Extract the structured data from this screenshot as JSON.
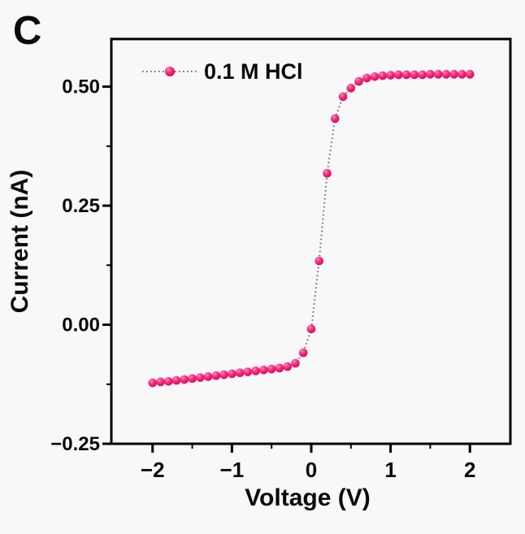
{
  "panel_label": "C",
  "colors": {
    "marker": "#ee1268",
    "marker_edge": "#c40751",
    "marker_highlight": "#ff8fc0",
    "dotted_line": "#6e6e6e",
    "axis": "#000000",
    "background": "#f8f8f8",
    "text": "#0a0a0a"
  },
  "chart_data": {
    "type": "scatter",
    "title": "",
    "xlabel": "Voltage (V)",
    "ylabel": "Current (nA)",
    "xlim": [
      -2.52,
      2.51
    ],
    "ylim": [
      -0.25,
      0.6
    ],
    "x_major_ticks": [
      -2,
      -1,
      0,
      1,
      2
    ],
    "x_tick_labels": [
      "−2",
      "−1",
      "0",
      "1",
      "2"
    ],
    "x_minor_ticks": [
      -1.5,
      -0.5,
      0.5,
      1.5
    ],
    "y_major_ticks": [
      0.5,
      0.25,
      0.0,
      -0.25
    ],
    "y_tick_labels": [
      "0.50",
      "0.25",
      "0.00",
      "−0.25"
    ],
    "y_minor_ticks": [
      0.375,
      0.125,
      -0.125
    ],
    "grid": false,
    "legend": {
      "position": "top-left-inside",
      "label": "0.1 M HCl"
    },
    "series": [
      {
        "name": "0.1 M HCl",
        "marker": "sphere",
        "line_style": "dotted",
        "x": [
          -2.0,
          -1.9,
          -1.8,
          -1.7,
          -1.6,
          -1.5,
          -1.4,
          -1.3,
          -1.2,
          -1.1,
          -1.0,
          -0.9,
          -0.8,
          -0.7,
          -0.6,
          -0.5,
          -0.4,
          -0.3,
          -0.2,
          -0.1,
          0.0,
          0.1,
          0.2,
          0.3,
          0.4,
          0.5,
          0.6,
          0.7,
          0.8,
          0.9,
          1.0,
          1.1,
          1.2,
          1.3,
          1.4,
          1.5,
          1.6,
          1.7,
          1.8,
          1.9,
          2.0
        ],
        "y": [
          -0.122,
          -0.12,
          -0.119,
          -0.117,
          -0.115,
          -0.113,
          -0.111,
          -0.109,
          -0.107,
          -0.105,
          -0.103,
          -0.101,
          -0.099,
          -0.097,
          -0.095,
          -0.093,
          -0.091,
          -0.088,
          -0.081,
          -0.059,
          -0.009,
          0.134,
          0.318,
          0.433,
          0.479,
          0.497,
          0.511,
          0.518,
          0.521,
          0.523,
          0.524,
          0.525,
          0.525,
          0.525,
          0.525,
          0.526,
          0.526,
          0.526,
          0.526,
          0.526,
          0.526
        ]
      }
    ]
  }
}
